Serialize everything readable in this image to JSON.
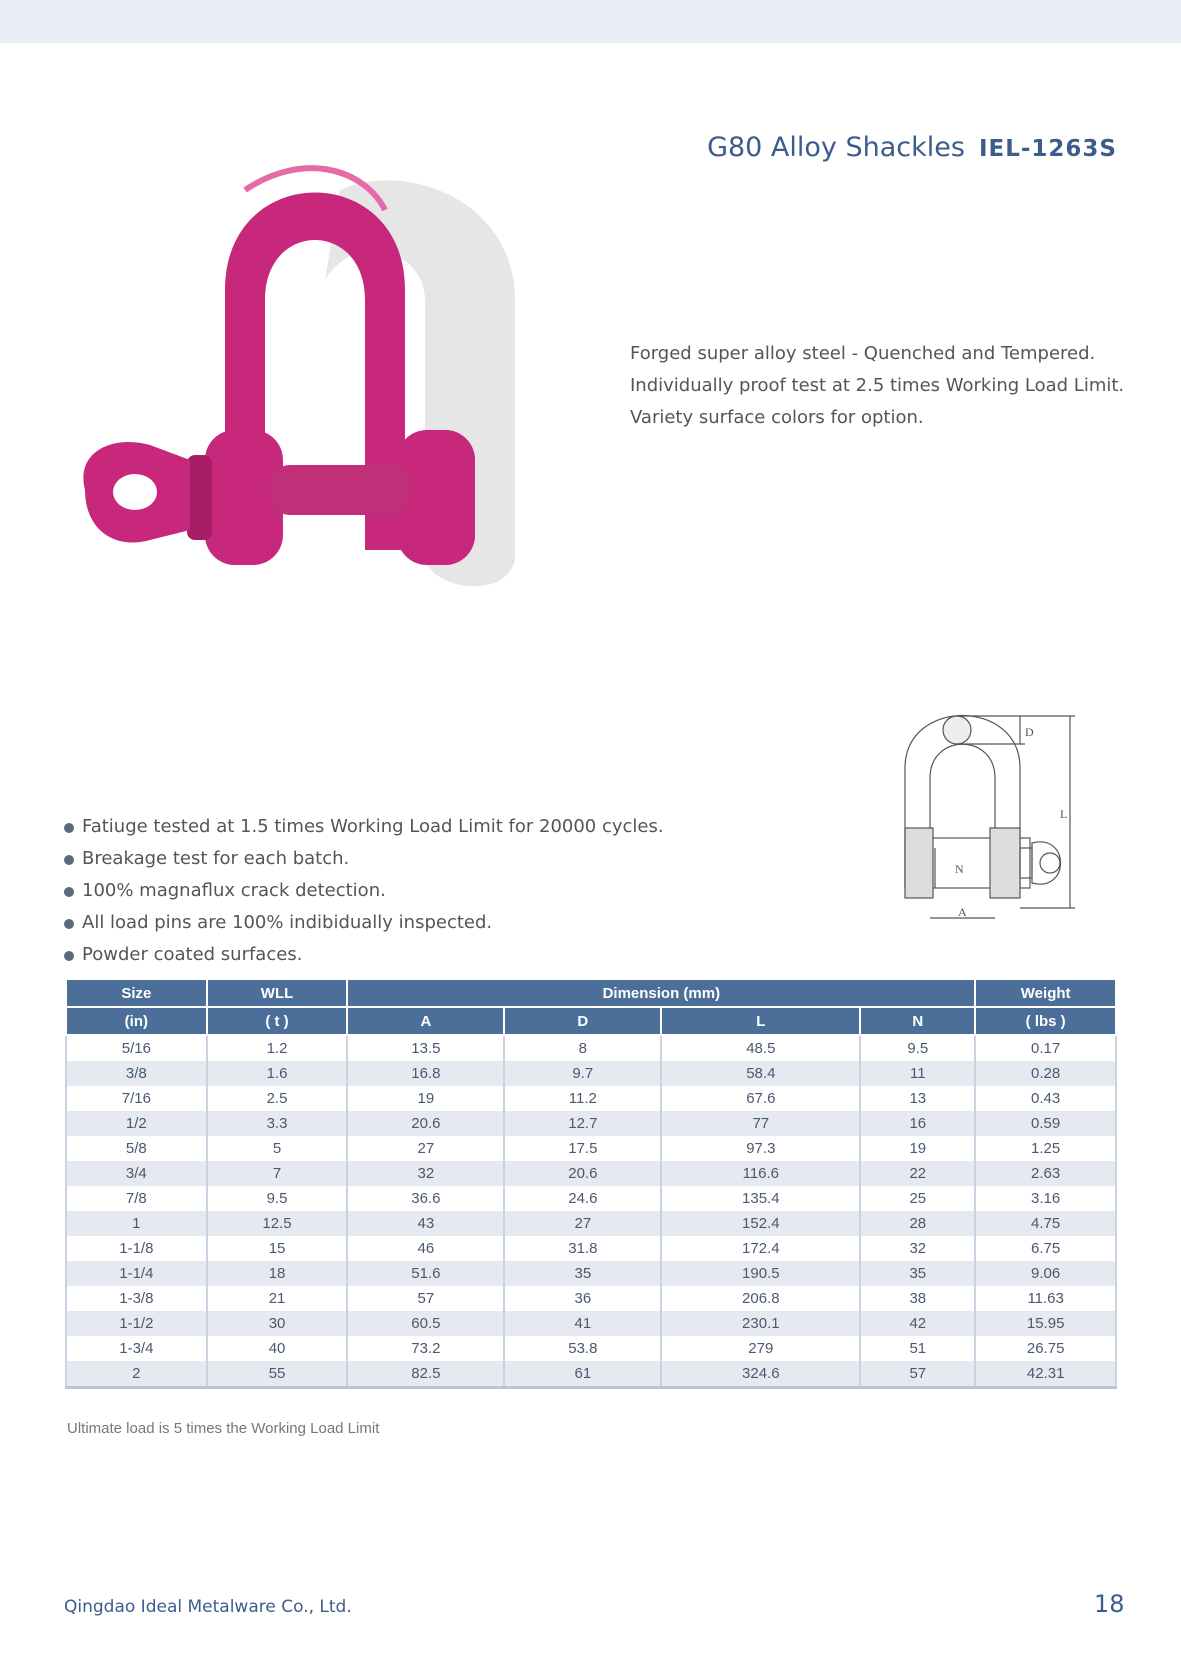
{
  "header": {
    "title": "G80 Alloy Shackles",
    "code": "IEL-1263S"
  },
  "description": [
    "Forged super alloy steel - Quenched and Tempered.",
    "Individually proof test at 2.5 times Working Load Limit.",
    "Variety surface colors for option."
  ],
  "diagram_labels": {
    "D": "D",
    "L": "L",
    "N": "N",
    "A": "A"
  },
  "features": [
    "Fatiuge tested at 1.5 times Working Load Limit for 20000 cycles.",
    "Breakage test for each batch.",
    "100% magnaflux crack detection.",
    "All load pins are 100% indibidually inspected.",
    "Powder coated surfaces."
  ],
  "table": {
    "headers": {
      "size": "Size",
      "size_unit": "(in)",
      "wll": "WLL",
      "wll_unit": "( t )",
      "dimension": "Dimension (mm)",
      "a": "A",
      "d": "D",
      "l": "L",
      "n": "N",
      "weight": "Weight",
      "weight_unit": "( lbs )"
    },
    "rows": [
      [
        "5/16",
        "1.2",
        "13.5",
        "8",
        "48.5",
        "9.5",
        "0.17"
      ],
      [
        "3/8",
        "1.6",
        "16.8",
        "9.7",
        "58.4",
        "11",
        "0.28"
      ],
      [
        "7/16",
        "2.5",
        "19",
        "11.2",
        "67.6",
        "13",
        "0.43"
      ],
      [
        "1/2",
        "3.3",
        "20.6",
        "12.7",
        "77",
        "16",
        "0.59"
      ],
      [
        "5/8",
        "5",
        "27",
        "17.5",
        "97.3",
        "19",
        "1.25"
      ],
      [
        "3/4",
        "7",
        "32",
        "20.6",
        "116.6",
        "22",
        "2.63"
      ],
      [
        "7/8",
        "9.5",
        "36.6",
        "24.6",
        "135.4",
        "25",
        "3.16"
      ],
      [
        "1",
        "12.5",
        "43",
        "27",
        "152.4",
        "28",
        "4.75"
      ],
      [
        "1-1/8",
        "15",
        "46",
        "31.8",
        "172.4",
        "32",
        "6.75"
      ],
      [
        "1-1/4",
        "18",
        "51.6",
        "35",
        "190.5",
        "35",
        "9.06"
      ],
      [
        "1-3/8",
        "21",
        "57",
        "36",
        "206.8",
        "38",
        "11.63"
      ],
      [
        "1-1/2",
        "30",
        "60.5",
        "41",
        "230.1",
        "42",
        "15.95"
      ],
      [
        "1-3/4",
        "40",
        "73.2",
        "53.8",
        "279",
        "51",
        "26.75"
      ],
      [
        "2",
        "55",
        "82.5",
        "61",
        "324.6",
        "57",
        "42.31"
      ]
    ],
    "note": "Ultimate load is 5 times the Working Load Limit"
  },
  "footer": {
    "company": "Qingdao Ideal Metalware Co., Ltd.",
    "page": "18"
  },
  "colors": {
    "accent": "#3d5c8e",
    "table_header": "#4c6f99",
    "product": "#c8287c"
  }
}
